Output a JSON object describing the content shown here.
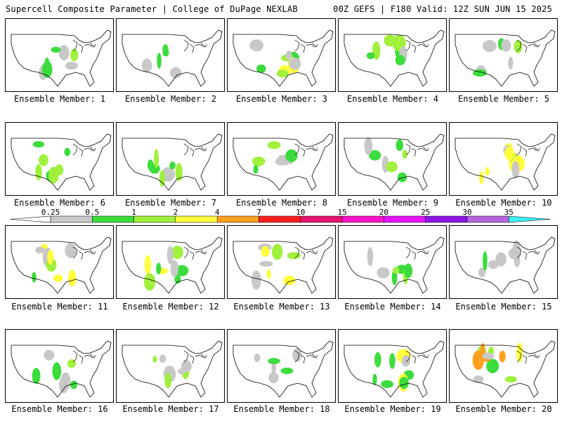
{
  "header": {
    "left_title": "Supercell Composite Parameter | College of DuPage NEXLAB",
    "right_title": "00Z GEFS | F180 Valid: 12Z SUN JUN 15 2025"
  },
  "colorbar": {
    "tick_labels": [
      "0.25",
      "0.5",
      "1",
      "2",
      "4",
      "7",
      "10",
      "15",
      "20",
      "25",
      "30",
      "35"
    ],
    "colors": [
      "#c8c8c8",
      "#3cdc3c",
      "#a0f03c",
      "#ffff3c",
      "#ffa020",
      "#ff1e1e",
      "#e6146e",
      "#ff14c8",
      "#e614ff",
      "#8c14e6",
      "#b464dc",
      "#3cf0f0"
    ]
  },
  "members": [
    {
      "label": "Ensemble Member: 1",
      "level": 2
    },
    {
      "label": "Ensemble Member: 2",
      "level": 1
    },
    {
      "label": "Ensemble Member: 3",
      "level": 3
    },
    {
      "label": "Ensemble Member: 4",
      "level": 2
    },
    {
      "label": "Ensemble Member: 5",
      "level": 2
    },
    {
      "label": "Ensemble Member: 6",
      "level": 2
    },
    {
      "label": "Ensemble Member: 7",
      "level": 2
    },
    {
      "label": "Ensemble Member: 8",
      "level": 2
    },
    {
      "label": "Ensemble Member: 9",
      "level": 2
    },
    {
      "label": "Ensemble Member: 10",
      "level": 3
    },
    {
      "label": "Ensemble Member: 11",
      "level": 3
    },
    {
      "label": "Ensemble Member: 12",
      "level": 3
    },
    {
      "label": "Ensemble Member: 13",
      "level": 3
    },
    {
      "label": "Ensemble Member: 14",
      "level": 2
    },
    {
      "label": "Ensemble Member: 15",
      "level": 2
    },
    {
      "label": "Ensemble Member: 16",
      "level": 2
    },
    {
      "label": "Ensemble Member: 17",
      "level": 2
    },
    {
      "label": "Ensemble Member: 18",
      "level": 2
    },
    {
      "label": "Ensemble Member: 19",
      "level": 3
    },
    {
      "label": "Ensemble Member: 20",
      "level": 4
    }
  ]
}
